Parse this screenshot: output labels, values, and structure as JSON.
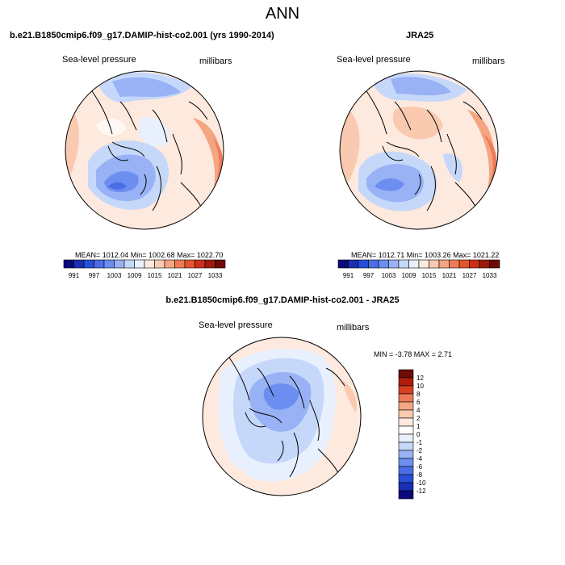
{
  "figure": {
    "title": "ANN"
  },
  "panels": [
    {
      "title": "b.e21.B1850cmip6.f09_g17.DAMIP-hist-co2.001 (yrs 1990-2014)",
      "left_label": "Sea-level pressure",
      "right_label": "millibars",
      "stats": "MEAN= 1012.04   Min= 1002.68   Max= 1022.70"
    },
    {
      "title": "JRA25",
      "left_label": "Sea-level pressure",
      "right_label": "millibars",
      "stats": "MEAN= 1012.71   Min= 1003.26   Max= 1021.22"
    },
    {
      "title": "b.e21.B1850cmip6.f09_g17.DAMIP-hist-co2.001 - JRA25",
      "left_label": "Sea-level pressure",
      "right_label": "millibars",
      "stats": "MIN =  -3.78 MAX =   2.71"
    }
  ],
  "colorbars": {
    "absolute": {
      "colors": [
        "#0a0a7d",
        "#1a2fb4",
        "#2850d6",
        "#4a6ee6",
        "#6b8ef0",
        "#98b2f5",
        "#c6d8fa",
        "#e8f0fd",
        "#fde9de",
        "#f9c9b0",
        "#f4a582",
        "#ee7b58",
        "#e5542f",
        "#cc2f15",
        "#9e1a0a",
        "#6e0a04"
      ],
      "labels": [
        "991",
        "997",
        "1003",
        "1009",
        "1015",
        "1021",
        "1027",
        "1033"
      ]
    },
    "difference": {
      "colors": [
        "#6e0a04",
        "#b01c0a",
        "#d9401f",
        "#ee7b58",
        "#f4a582",
        "#f9c9b0",
        "#fde9de",
        "#ffffff",
        "#e8f0fd",
        "#c6d8fa",
        "#98b2f5",
        "#6b8ef0",
        "#4a6ee6",
        "#2850d6",
        "#1a2fb4",
        "#0a0a7d"
      ],
      "labels": [
        "12",
        "10",
        "8",
        "6",
        "4",
        "2",
        "1",
        "0",
        "-1",
        "-2",
        "-4",
        "-6",
        "-8",
        "-10",
        "-12"
      ]
    }
  }
}
